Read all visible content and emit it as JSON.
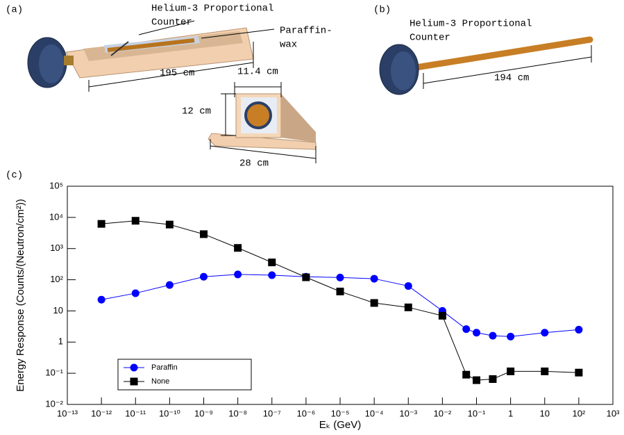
{
  "panels": {
    "a": {
      "label": "(a)",
      "counter_label": [
        "Helium-3 Proportional",
        "Counter"
      ],
      "paraffin_label": [
        "Paraffin-",
        "wax"
      ],
      "length": "195 cm",
      "width": "11.4 cm",
      "height": "12 cm",
      "base": "28 cm"
    },
    "b": {
      "label": "(b)",
      "counter_label": [
        "Helium-3 Proportional",
        "Counter"
      ],
      "length": "194 cm"
    },
    "c": {
      "label": "(c)"
    }
  },
  "chart_data": {
    "type": "line",
    "x_label": "Eₖ (GeV)",
    "y_label": "Energy Response (Counts/(Neutron/cm²))",
    "xscale": "log",
    "yscale": "log",
    "xlim": [
      1e-13,
      1000
    ],
    "ylim": [
      0.01,
      100000
    ],
    "xticks": [
      {
        "value": 1e-13,
        "label": "10⁻¹³"
      },
      {
        "value": 1e-12,
        "label": "10⁻¹²"
      },
      {
        "value": 1e-11,
        "label": "10⁻¹¹"
      },
      {
        "value": 1e-10,
        "label": "10⁻¹⁰"
      },
      {
        "value": 1e-09,
        "label": "10⁻⁹"
      },
      {
        "value": 1e-08,
        "label": "10⁻⁸"
      },
      {
        "value": 1e-07,
        "label": "10⁻⁷"
      },
      {
        "value": 1e-06,
        "label": "10⁻⁶"
      },
      {
        "value": 1e-05,
        "label": "10⁻⁵"
      },
      {
        "value": 0.0001,
        "label": "10⁻⁴"
      },
      {
        "value": 0.001,
        "label": "10⁻³"
      },
      {
        "value": 0.01,
        "label": "10⁻²"
      },
      {
        "value": 0.1,
        "label": "10⁻¹"
      },
      1,
      10,
      {
        "value": 100,
        "label": "10²"
      },
      {
        "value": 1000,
        "label": "10³"
      }
    ],
    "yticks": [
      {
        "value": 0.01,
        "label": "10⁻²"
      },
      {
        "value": 0.1,
        "label": "10⁻¹"
      },
      1,
      10,
      {
        "value": 100,
        "label": "10²"
      },
      {
        "value": 1000,
        "label": "10³"
      },
      {
        "value": 10000,
        "label": "10⁴"
      },
      {
        "value": 100000,
        "label": "10⁵"
      }
    ],
    "x": [
      1e-12,
      1e-11,
      1e-10,
      1e-09,
      1e-08,
      1e-07,
      1e-06,
      1e-05,
      0.0001,
      0.001,
      0.01,
      0.05,
      0.1,
      0.3,
      1,
      10,
      100
    ],
    "series": [
      {
        "name": "Paraffin",
        "color": "#0000ff",
        "marker": "circle",
        "values": [
          23,
          37,
          68,
          125,
          148,
          140,
          125,
          118,
          108,
          63,
          10,
          2.6,
          2.0,
          1.6,
          1.5,
          2.0,
          2.5
        ]
      },
      {
        "name": "None",
        "color": "#000000",
        "marker": "square",
        "values": [
          6200,
          7800,
          5900,
          2900,
          1050,
          360,
          120,
          42,
          18,
          13,
          7,
          0.09,
          0.06,
          0.065,
          0.115,
          0.115,
          0.105
        ]
      }
    ],
    "legend": "lower left"
  }
}
